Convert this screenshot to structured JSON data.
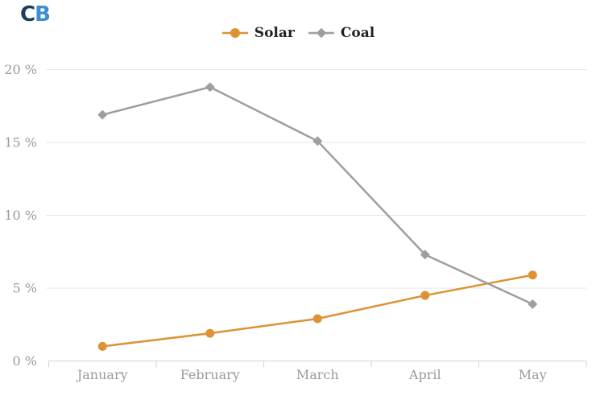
{
  "logo": {
    "text_c": "C",
    "text_b": "B",
    "color_c": "#1d3c5f",
    "color_b": "#3e8fd0"
  },
  "legend": {
    "items": [
      {
        "label": "Solar",
        "color": "#dd9333",
        "marker": "circle"
      },
      {
        "label": "Coal",
        "color": "#9e9e9e",
        "marker": "diamond"
      }
    ]
  },
  "chart_data": {
    "type": "line",
    "title": "",
    "xlabel": "",
    "ylabel": "",
    "categories": [
      "January",
      "February",
      "March",
      "April",
      "May"
    ],
    "series": [
      {
        "name": "Solar",
        "values": [
          1.0,
          1.9,
          2.9,
          4.5,
          5.9
        ],
        "color": "#dd9333",
        "marker": "circle"
      },
      {
        "name": "Coal",
        "values": [
          16.9,
          18.8,
          15.1,
          7.3,
          3.9
        ],
        "color": "#9e9e9e",
        "marker": "diamond"
      }
    ],
    "yticks": [
      0,
      5,
      10,
      15,
      20
    ],
    "ytick_labels": [
      "0 %",
      "5 %",
      "10 %",
      "15 %",
      "20 %"
    ],
    "ylim": [
      0,
      20
    ],
    "grid": true,
    "legend_position": "top-center",
    "axis_color": "#c9d6de",
    "grid_color": "#e6e6e6",
    "label_color": "#9a9a9a"
  }
}
